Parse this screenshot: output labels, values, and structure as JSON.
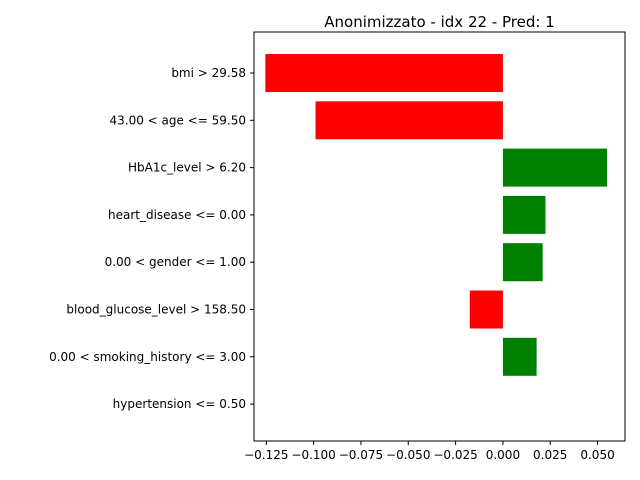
{
  "chart_data": {
    "type": "bar",
    "orientation": "horizontal",
    "title": "Anonimizzato - idx 22 - Pred: 1",
    "xlabel": "",
    "ylabel": "",
    "grid": false,
    "xlim": [
      -0.1315,
      0.0645
    ],
    "xticks": [
      -0.125,
      -0.1,
      -0.075,
      -0.05,
      -0.025,
      0.0,
      0.025,
      0.05
    ],
    "xtick_labels": [
      "−0.125",
      "−0.100",
      "−0.075",
      "−0.050",
      "−0.025",
      "0.000",
      "0.025",
      "0.050"
    ],
    "categories": [
      "bmi > 29.58",
      "43.00 < age <= 59.50",
      "HbA1c_level > 6.20",
      "heart_disease <= 0.00",
      "0.00 < gender <= 1.00",
      "blood_glucose_level > 158.50",
      "0.00 < smoking_history <= 3.00",
      "hypertension <= 0.50"
    ],
    "values": [
      -0.1255,
      -0.099,
      0.055,
      0.0225,
      0.021,
      -0.0175,
      0.0178,
      0.0
    ],
    "positive_color": "#008000",
    "negative_color": "#ff0000"
  }
}
